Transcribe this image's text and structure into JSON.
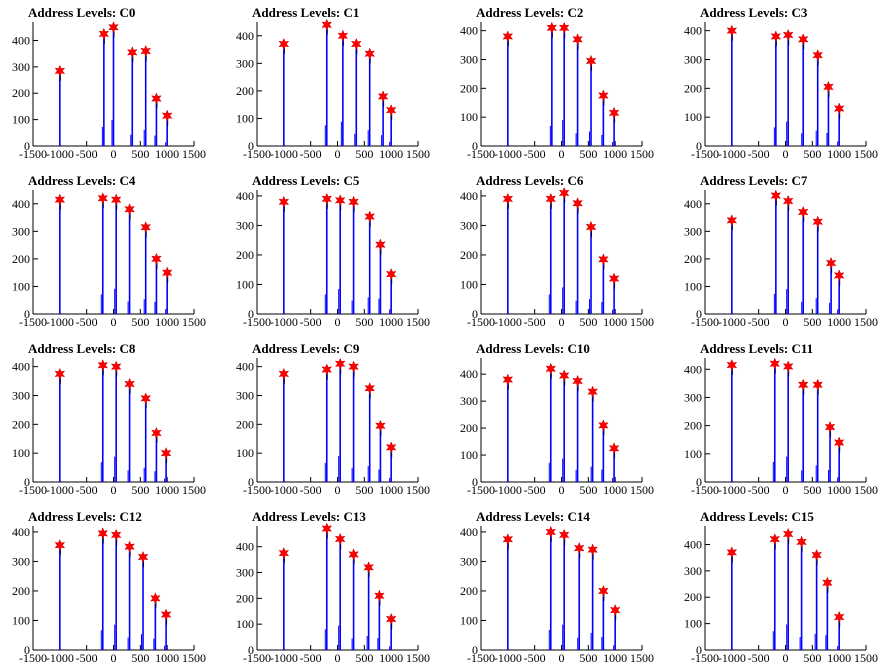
{
  "figure": {
    "background": "#ffffff"
  },
  "colors": {
    "histogram": "#0000ff",
    "peak_spike": "#000000",
    "marker": "#ff0000"
  },
  "chart_data": [
    {
      "type": "bar",
      "title": "Address Levels: C0",
      "xlim": [
        -1500,
        1500
      ],
      "ylim": [
        0,
        470
      ],
      "xticks": [
        "-1500",
        "-1000",
        "-500",
        "0",
        "500",
        "1000",
        "1500"
      ],
      "yticks": [
        "0",
        "100",
        "200",
        "300",
        "400"
      ],
      "peaks": [
        [
          -1000,
          285
        ],
        [
          -180,
          425
        ],
        [
          0,
          450
        ],
        [
          350,
          355
        ],
        [
          600,
          360
        ],
        [
          800,
          180
        ],
        [
          1000,
          115
        ]
      ]
    },
    {
      "type": "bar",
      "title": "Address Levels: C1",
      "xlim": [
        -1500,
        1500
      ],
      "ylim": [
        0,
        450
      ],
      "xticks": [
        "-1500",
        "-1000",
        "-500",
        "0",
        "500",
        "1000",
        "1500"
      ],
      "yticks": [
        "0",
        "100",
        "200",
        "300",
        "400"
      ],
      "peaks": [
        [
          -1000,
          370
        ],
        [
          -200,
          440
        ],
        [
          100,
          400
        ],
        [
          350,
          370
        ],
        [
          600,
          335
        ],
        [
          850,
          180
        ],
        [
          1000,
          130
        ]
      ]
    },
    {
      "type": "bar",
      "title": "Address Levels: C2",
      "xlim": [
        -1500,
        1500
      ],
      "ylim": [
        0,
        430
      ],
      "xticks": [
        "-1500",
        "-1000",
        "-500",
        "0",
        "500",
        "1000",
        "1500"
      ],
      "yticks": [
        "0",
        "100",
        "200",
        "300",
        "400"
      ],
      "peaks": [
        [
          -1000,
          380
        ],
        [
          -180,
          410
        ],
        [
          50,
          410
        ],
        [
          300,
          370
        ],
        [
          550,
          295
        ],
        [
          780,
          175
        ],
        [
          980,
          115
        ]
      ]
    },
    {
      "type": "bar",
      "title": "Address Levels: C3",
      "xlim": [
        -1500,
        1500
      ],
      "ylim": [
        0,
        430
      ],
      "xticks": [
        "-1500",
        "-1000",
        "-500",
        "0",
        "500",
        "1000",
        "1500"
      ],
      "yticks": [
        "0",
        "100",
        "200",
        "300",
        "400"
      ],
      "peaks": [
        [
          -1000,
          400
        ],
        [
          -180,
          380
        ],
        [
          50,
          385
        ],
        [
          330,
          370
        ],
        [
          600,
          315
        ],
        [
          800,
          205
        ],
        [
          1000,
          130
        ]
      ]
    },
    {
      "type": "bar",
      "title": "Address Levels: C4",
      "xlim": [
        -1500,
        1500
      ],
      "ylim": [
        0,
        450
      ],
      "xticks": [
        "-1500",
        "-1000",
        "-500",
        "0",
        "500",
        "1000",
        "1500"
      ],
      "yticks": [
        "0",
        "100",
        "200",
        "300",
        "400"
      ],
      "peaks": [
        [
          -1000,
          415
        ],
        [
          -200,
          420
        ],
        [
          50,
          415
        ],
        [
          300,
          380
        ],
        [
          600,
          315
        ],
        [
          800,
          200
        ],
        [
          1000,
          150
        ]
      ]
    },
    {
      "type": "bar",
      "title": "Address Levels: C5",
      "xlim": [
        -1500,
        1500
      ],
      "ylim": [
        0,
        420
      ],
      "xticks": [
        "-1500",
        "-1000",
        "-500",
        "0",
        "500",
        "1000",
        "1500"
      ],
      "yticks": [
        "0",
        "100",
        "200",
        "300",
        "400"
      ],
      "peaks": [
        [
          -1000,
          380
        ],
        [
          -200,
          390
        ],
        [
          50,
          385
        ],
        [
          300,
          380
        ],
        [
          600,
          330
        ],
        [
          800,
          235
        ],
        [
          1000,
          135
        ]
      ]
    },
    {
      "type": "bar",
      "title": "Address Levels: C6",
      "xlim": [
        -1500,
        1500
      ],
      "ylim": [
        0,
        420
      ],
      "xticks": [
        "-1500",
        "-1000",
        "-500",
        "0",
        "500",
        "1000",
        "1500"
      ],
      "yticks": [
        "0",
        "100",
        "200",
        "300",
        "400"
      ],
      "peaks": [
        [
          -1000,
          390
        ],
        [
          -200,
          390
        ],
        [
          50,
          410
        ],
        [
          300,
          375
        ],
        [
          550,
          295
        ],
        [
          780,
          185
        ],
        [
          980,
          120
        ]
      ]
    },
    {
      "type": "bar",
      "title": "Address Levels: C7",
      "xlim": [
        -1500,
        1500
      ],
      "ylim": [
        0,
        450
      ],
      "xticks": [
        "-1500",
        "-1000",
        "-500",
        "0",
        "500",
        "1000",
        "1500"
      ],
      "yticks": [
        "0",
        "100",
        "200",
        "300",
        "400"
      ],
      "peaks": [
        [
          -1000,
          340
        ],
        [
          -180,
          430
        ],
        [
          50,
          410
        ],
        [
          330,
          370
        ],
        [
          600,
          335
        ],
        [
          850,
          185
        ],
        [
          1000,
          140
        ]
      ]
    },
    {
      "type": "bar",
      "title": "Address Levels: C8",
      "xlim": [
        -1500,
        1500
      ],
      "ylim": [
        0,
        430
      ],
      "xticks": [
        "-1500",
        "-1000",
        "-500",
        "0",
        "500",
        "1000",
        "1500"
      ],
      "yticks": [
        "0",
        "100",
        "200",
        "300",
        "400"
      ],
      "peaks": [
        [
          -1000,
          375
        ],
        [
          -200,
          405
        ],
        [
          50,
          400
        ],
        [
          300,
          340
        ],
        [
          600,
          290
        ],
        [
          800,
          170
        ],
        [
          980,
          100
        ]
      ]
    },
    {
      "type": "bar",
      "title": "Address Levels: C9",
      "xlim": [
        -1500,
        1500
      ],
      "ylim": [
        0,
        430
      ],
      "xticks": [
        "-1500",
        "-1000",
        "-500",
        "0",
        "500",
        "1000",
        "1500"
      ],
      "yticks": [
        "0",
        "100",
        "200",
        "300",
        "400"
      ],
      "peaks": [
        [
          -1000,
          375
        ],
        [
          -200,
          390
        ],
        [
          50,
          410
        ],
        [
          300,
          400
        ],
        [
          600,
          325
        ],
        [
          800,
          195
        ],
        [
          1000,
          120
        ]
      ]
    },
    {
      "type": "bar",
      "title": "Address Levels: C10",
      "xlim": [
        -1500,
        1500
      ],
      "ylim": [
        0,
        460
      ],
      "xticks": [
        "-1500",
        "-1000",
        "-500",
        "0",
        "500",
        "1000",
        "1500"
      ],
      "yticks": [
        "0",
        "100",
        "200",
        "300",
        "400"
      ],
      "peaks": [
        [
          -1000,
          380
        ],
        [
          -200,
          420
        ],
        [
          50,
          395
        ],
        [
          300,
          375
        ],
        [
          580,
          335
        ],
        [
          780,
          210
        ],
        [
          980,
          125
        ]
      ]
    },
    {
      "type": "bar",
      "title": "Address Levels: C11",
      "xlim": [
        -1500,
        1500
      ],
      "ylim": [
        0,
        440
      ],
      "xticks": [
        "-1500",
        "-1000",
        "-500",
        "0",
        "500",
        "1000",
        "1500"
      ],
      "yticks": [
        "0",
        "100",
        "200",
        "300",
        "400"
      ],
      "peaks": [
        [
          -1000,
          415
        ],
        [
          -200,
          420
        ],
        [
          50,
          410
        ],
        [
          330,
          345
        ],
        [
          600,
          345
        ],
        [
          830,
          195
        ],
        [
          1000,
          140
        ]
      ]
    },
    {
      "type": "bar",
      "title": "Address Levels: C12",
      "xlim": [
        -1500,
        1500
      ],
      "ylim": [
        0,
        420
      ],
      "xticks": [
        "-1500",
        "-1000",
        "-500",
        "0",
        "500",
        "1000",
        "1500"
      ],
      "yticks": [
        "0",
        "100",
        "200",
        "300",
        "400"
      ],
      "peaks": [
        [
          -1000,
          355
        ],
        [
          -200,
          395
        ],
        [
          50,
          390
        ],
        [
          300,
          350
        ],
        [
          550,
          315
        ],
        [
          780,
          175
        ],
        [
          980,
          120
        ]
      ]
    },
    {
      "type": "bar",
      "title": "Address Levels: C13",
      "xlim": [
        -1500,
        1500
      ],
      "ylim": [
        0,
        480
      ],
      "xticks": [
        "-1500",
        "-1000",
        "-500",
        "0",
        "500",
        "1000",
        "1500"
      ],
      "yticks": [
        "0",
        "100",
        "200",
        "300",
        "400"
      ],
      "peaks": [
        [
          -1000,
          375
        ],
        [
          -200,
          470
        ],
        [
          50,
          430
        ],
        [
          300,
          370
        ],
        [
          580,
          320
        ],
        [
          780,
          210
        ],
        [
          1000,
          120
        ]
      ]
    },
    {
      "type": "bar",
      "title": "Address Levels: C14",
      "xlim": [
        -1500,
        1500
      ],
      "ylim": [
        0,
        420
      ],
      "xticks": [
        "-1500",
        "-1000",
        "-500",
        "0",
        "500",
        "1000",
        "1500"
      ],
      "yticks": [
        "0",
        "100",
        "200",
        "300",
        "400"
      ],
      "peaks": [
        [
          -1000,
          375
        ],
        [
          -200,
          400
        ],
        [
          50,
          390
        ],
        [
          330,
          345
        ],
        [
          580,
          340
        ],
        [
          780,
          200
        ],
        [
          1000,
          135
        ]
      ]
    },
    {
      "type": "bar",
      "title": "Address Levels: C15",
      "xlim": [
        -1500,
        1500
      ],
      "ylim": [
        0,
        470
      ],
      "xticks": [
        "-1500",
        "-1000",
        "-500",
        "0",
        "500",
        "1000",
        "1500"
      ],
      "yticks": [
        "0",
        "100",
        "200",
        "300",
        "400"
      ],
      "peaks": [
        [
          -1000,
          370
        ],
        [
          -200,
          420
        ],
        [
          50,
          440
        ],
        [
          300,
          410
        ],
        [
          580,
          360
        ],
        [
          780,
          255
        ],
        [
          1000,
          125
        ]
      ]
    }
  ]
}
